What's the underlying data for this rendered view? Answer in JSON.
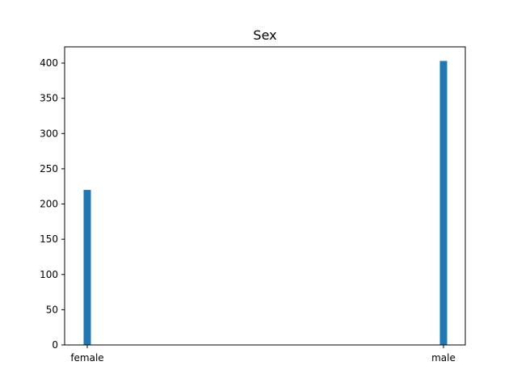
{
  "chart_data": {
    "type": "bar",
    "title": "Sex",
    "xlabel": "",
    "ylabel": "",
    "categories": [
      "female",
      "male"
    ],
    "values": [
      220,
      403
    ],
    "ylim": [
      0,
      423
    ],
    "yticks": [
      0,
      50,
      100,
      150,
      200,
      250,
      300,
      350,
      400
    ],
    "bar_color": "#1f77b4",
    "grid": false,
    "legend": "none"
  }
}
